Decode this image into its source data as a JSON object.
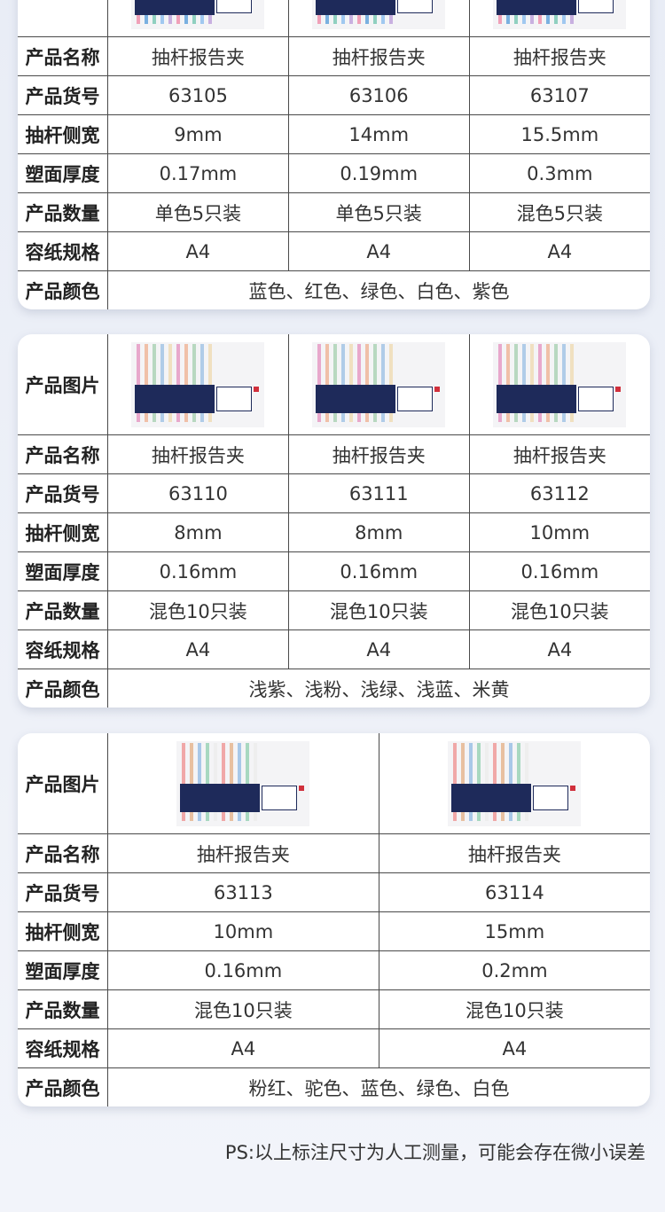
{
  "labels": [
    "产品图片",
    "产品名称",
    "产品货号",
    "抽杆侧宽",
    "塑面厚度",
    "产品数量",
    "容纸规格",
    "产品颜色"
  ],
  "tables": [
    {
      "products": [
        {
          "name": "抽杆报告夹",
          "sku": "63105",
          "width": "9mm",
          "thickness": "0.17mm",
          "quantity": "单色5只装",
          "paper": "A4"
        },
        {
          "name": "抽杆报告夹",
          "sku": "63106",
          "width": "14mm",
          "thickness": "0.19mm",
          "quantity": "单色5只装",
          "paper": "A4"
        },
        {
          "name": "抽杆报告夹",
          "sku": "63107",
          "width": "15.5mm",
          "thickness": "0.3mm",
          "quantity": "混色5只装",
          "paper": "A4"
        }
      ],
      "colors": "蓝色、红色、绿色、白色、紫色",
      "stick_colors": [
        "#f0a0b8",
        "#7ab0e0",
        "#90d0c0",
        "#a0c8f0",
        "#c8b0e0"
      ]
    },
    {
      "products": [
        {
          "name": "抽杆报告夹",
          "sku": "63110",
          "width": "8mm",
          "thickness": "0.16mm",
          "quantity": "混色10只装",
          "paper": "A4"
        },
        {
          "name": "抽杆报告夹",
          "sku": "63111",
          "width": "8mm",
          "thickness": "0.16mm",
          "quantity": "混色10只装",
          "paper": "A4"
        },
        {
          "name": "抽杆报告夹",
          "sku": "63112",
          "width": "10mm",
          "thickness": "0.16mm",
          "quantity": "混色10只装",
          "paper": "A4"
        }
      ],
      "colors": "浅紫、浅粉、浅绿、浅蓝、米黄",
      "stick_colors": [
        "#e8a8cc",
        "#f0c0a8",
        "#b8d8c0",
        "#b0cce8",
        "#f0e0c0"
      ]
    },
    {
      "products": [
        {
          "name": "抽杆报告夹",
          "sku": "63113",
          "width": "10mm",
          "thickness": "0.16mm",
          "quantity": "混色10只装",
          "paper": "A4"
        },
        {
          "name": "抽杆报告夹",
          "sku": "63114",
          "width": "15mm",
          "thickness": "0.2mm",
          "quantity": "混色10只装",
          "paper": "A4"
        }
      ],
      "colors": "粉红、驼色、蓝色、绿色、白色",
      "stick_colors": [
        "#f0a8a8",
        "#e8c0a0",
        "#a8c8e8",
        "#a8d8c0",
        "#eeeeee"
      ]
    }
  ],
  "footnote": "PS:以上标注尺寸为人工测量，可能会存在微小误差"
}
